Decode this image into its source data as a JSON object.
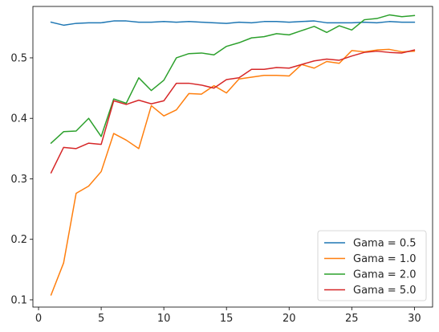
{
  "chart_data": {
    "type": "line",
    "title": "",
    "xlabel": "",
    "ylabel": "",
    "xlim": [
      -0.45,
      31.45
    ],
    "ylim": [
      0.088,
      0.585
    ],
    "x_ticks": [
      0,
      5,
      10,
      15,
      20,
      25,
      30
    ],
    "y_ticks": [
      0.1,
      0.2,
      0.3,
      0.4,
      0.5
    ],
    "grid": false,
    "legend_position": "lower-right",
    "x": [
      1,
      2,
      3,
      4,
      5,
      6,
      7,
      8,
      9,
      10,
      11,
      12,
      13,
      14,
      15,
      16,
      17,
      18,
      19,
      20,
      21,
      22,
      23,
      24,
      25,
      26,
      27,
      28,
      29,
      30
    ],
    "series": [
      {
        "name": "Gama = 0.5",
        "color": "#1f77b4",
        "values": [
          0.559,
          0.554,
          0.557,
          0.558,
          0.558,
          0.561,
          0.561,
          0.559,
          0.559,
          0.56,
          0.559,
          0.56,
          0.559,
          0.558,
          0.557,
          0.559,
          0.558,
          0.56,
          0.56,
          0.559,
          0.56,
          0.561,
          0.558,
          0.558,
          0.558,
          0.559,
          0.558,
          0.56,
          0.559,
          0.559
        ]
      },
      {
        "name": "Gama = 1.0",
        "color": "#ff7f0e",
        "values": [
          0.108,
          0.161,
          0.276,
          0.288,
          0.312,
          0.375,
          0.364,
          0.35,
          0.421,
          0.404,
          0.414,
          0.441,
          0.44,
          0.454,
          0.442,
          0.465,
          0.468,
          0.471,
          0.471,
          0.47,
          0.489,
          0.483,
          0.494,
          0.491,
          0.512,
          0.51,
          0.513,
          0.514,
          0.51,
          0.511
        ]
      },
      {
        "name": "Gama = 2.0",
        "color": "#2ca02c",
        "values": [
          0.359,
          0.378,
          0.379,
          0.4,
          0.37,
          0.432,
          0.425,
          0.467,
          0.446,
          0.463,
          0.5,
          0.507,
          0.508,
          0.505,
          0.519,
          0.525,
          0.533,
          0.535,
          0.54,
          0.538,
          0.545,
          0.552,
          0.542,
          0.553,
          0.546,
          0.563,
          0.565,
          0.571,
          0.568,
          0.57
        ]
      },
      {
        "name": "Gama = 5.0",
        "color": "#d62728",
        "values": [
          0.31,
          0.352,
          0.35,
          0.359,
          0.357,
          0.429,
          0.423,
          0.43,
          0.424,
          0.429,
          0.458,
          0.458,
          0.455,
          0.45,
          0.464,
          0.467,
          0.481,
          0.481,
          0.484,
          0.483,
          0.489,
          0.495,
          0.498,
          0.496,
          0.503,
          0.509,
          0.511,
          0.509,
          0.508,
          0.513
        ]
      }
    ]
  }
}
